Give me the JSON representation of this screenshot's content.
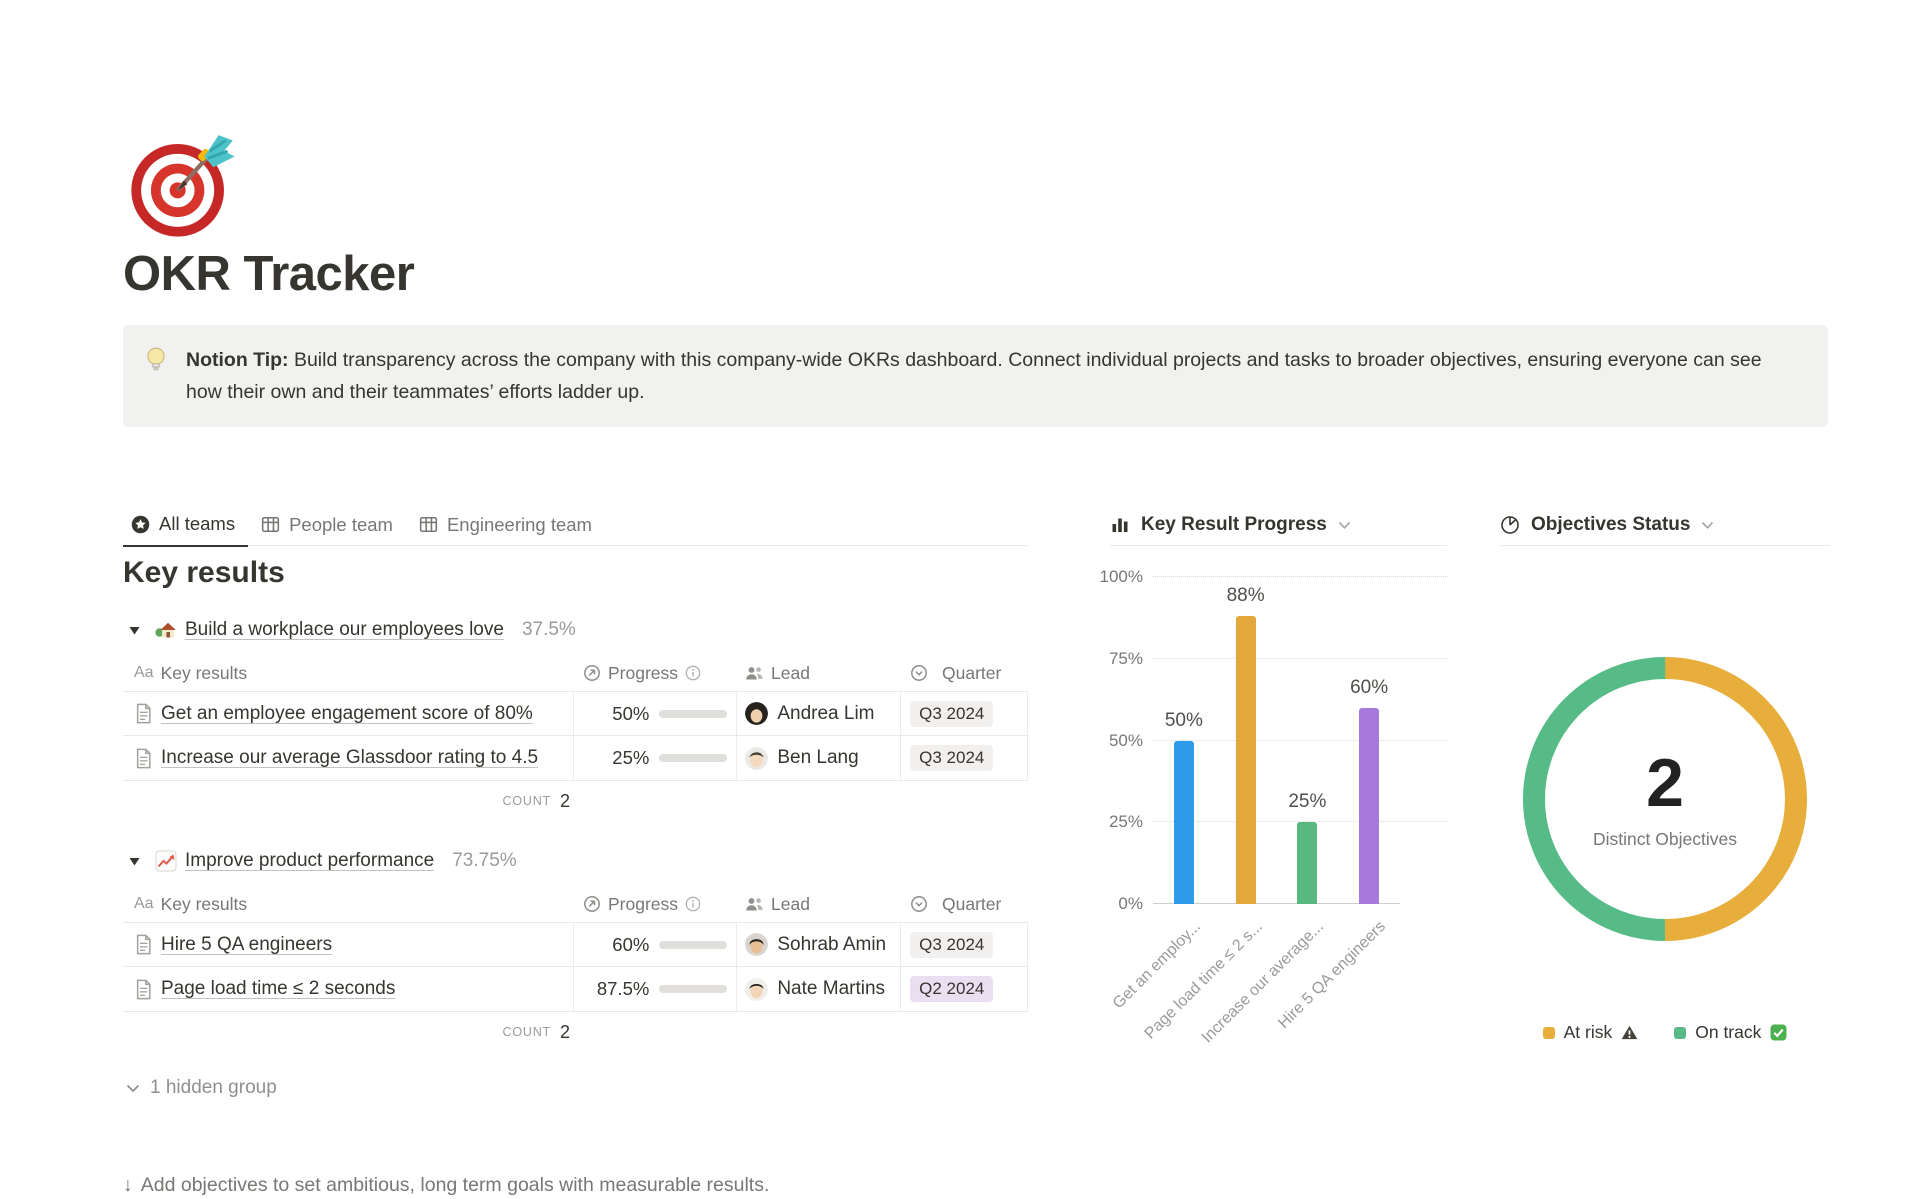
{
  "page": {
    "title": "OKR Tracker"
  },
  "callout": {
    "bold": "Notion Tip:",
    "text": " Build transparency across the company with this company-wide OKRs dashboard. Connect individual projects and tasks to broader objectives, ensuring everyone can see how their own and their teammates’ efforts ladder up."
  },
  "tabs": [
    {
      "label": "All teams",
      "icon": "star-circle",
      "active": true
    },
    {
      "label": "People team",
      "icon": "table-grid",
      "active": false
    },
    {
      "label": "Engineering team",
      "icon": "table-grid",
      "active": false
    }
  ],
  "board": {
    "heading": "Key results",
    "progress_color": "#6B9B7B",
    "header": {
      "title_icon": "Aa",
      "title": "Key results",
      "progress": "Progress",
      "lead": "Lead",
      "quarter": "Quarter"
    },
    "count_label": "Count",
    "groups": [
      {
        "emoji": "house-garden",
        "title": "Build a workplace our employees love",
        "percent": "37.5%",
        "count": "2",
        "rows": [
          {
            "title": "Get an employee engagement score of 80%",
            "progress_label": "50%",
            "progress": 50,
            "lead": "Andrea Lim",
            "quarter": "Q3 2024",
            "quarter_color": "gray"
          },
          {
            "title": "Increase our average Glassdoor rating to 4.5",
            "progress_label": "25%",
            "progress": 25,
            "lead": "Ben Lang",
            "quarter": "Q3 2024",
            "quarter_color": "gray"
          }
        ]
      },
      {
        "emoji": "chart-increasing",
        "title": "Improve product performance",
        "percent": "73.75%",
        "count": "2",
        "rows": [
          {
            "title": "Hire 5 QA engineers",
            "progress_label": "60%",
            "progress": 60,
            "lead": "Sohrab Amin",
            "quarter": "Q3 2024",
            "quarter_color": "gray"
          },
          {
            "title": "Page load time ≤ 2 seconds",
            "progress_label": "87.5%",
            "progress": 87.5,
            "lead": "Nate Martins",
            "quarter": "Q2 2024",
            "quarter_color": "purple"
          }
        ]
      }
    ],
    "hidden": "1 hidden group"
  },
  "chart_data": [
    {
      "type": "bar",
      "title": "Key Result Progress",
      "categories": [
        "Get an employ...",
        "Page load time ≤ 2 s...",
        "Increase our average...",
        "Hire 5 QA engineers"
      ],
      "values": [
        50,
        88,
        25,
        60
      ],
      "labels": [
        "50%",
        "88%",
        "25%",
        "60%"
      ],
      "colors": [
        "#2F9CEB",
        "#E2A83C",
        "#58B880",
        "#A879DC"
      ],
      "ylim": [
        0,
        100
      ],
      "yticks": [
        "0%",
        "25%",
        "50%",
        "75%",
        "100%"
      ],
      "grid": "horizontal-dotted",
      "legend_position": "none"
    },
    {
      "type": "pie",
      "title": "Objectives Status",
      "center_value": "2",
      "center_label": "Distinct Objectives",
      "slices": [
        {
          "name": "At risk",
          "value": 1,
          "color": "#E8AE3C",
          "status_icon": "warning-triangle"
        },
        {
          "name": "On track",
          "value": 1,
          "color": "#57BB87",
          "status_icon": "check-box"
        }
      ],
      "legend_position": "bottom"
    }
  ],
  "footer": {
    "arrow": "↓",
    "text": "Add objectives to set ambitious, long term goals with measurable results."
  }
}
